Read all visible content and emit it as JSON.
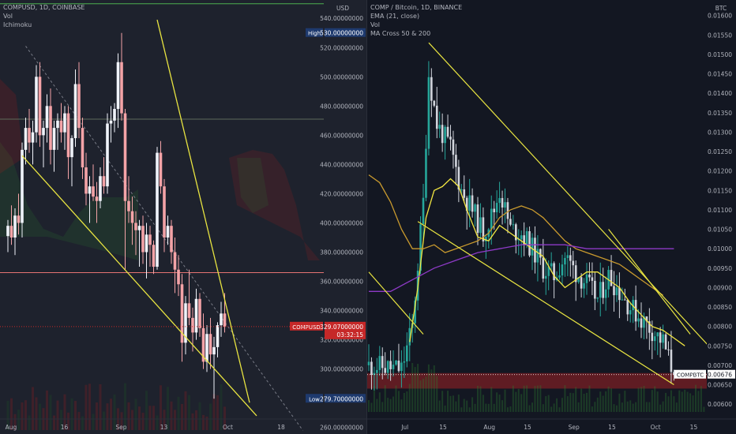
{
  "left": {
    "legend": [
      "COMPUSD, 1D, COINBASE",
      "Vol",
      "Ichimoku"
    ],
    "currency": "USD",
    "high_label": "High",
    "high_value": "530.00000000",
    "low_label": "Low",
    "low_value": "279.70000000",
    "symbol_tag": "COMPUSD",
    "price_tag": "329.07000000",
    "countdown": "03:32:15"
  },
  "right": {
    "legend": [
      "COMP / Bitcoin, 1D, BINANCE",
      "EMA (21, close)",
      "Vol",
      "MA Cross 50 & 200"
    ],
    "currency": "BTC",
    "symbol_tag": "COMPBTC",
    "price_tag": "0.00676"
  },
  "colors": {
    "up_left": "#f0f3fa",
    "down_left": "#f4a3a7",
    "up_right": "#26a69a",
    "down_right": "#d1d4dc",
    "trendline": "#e8e441",
    "ema": "#f2e641",
    "ma50": "#c99a2e",
    "ma200": "#8e3ac7",
    "support_zone": "#7a1f24",
    "price_tag_bg": "#c62828"
  },
  "chart_data": [
    {
      "type": "candlestick",
      "title": "COMPUSD, 1D, COINBASE",
      "ylim": [
        255,
        552
      ],
      "y_ticks": [
        260,
        280,
        300,
        320,
        340,
        360,
        380,
        400,
        420,
        440,
        460,
        480,
        500,
        520,
        540
      ],
      "y_tick_labels": [
        "260.00000000",
        "280.00000000",
        "300.00000000",
        "320.00000000",
        "340.00000000",
        "360.00000000",
        "380.00000000",
        "400.00000000",
        "420.00000000",
        "440.00000000",
        "460.00000000",
        "480.00000000",
        "500.00000000",
        "520.00000000",
        "540.00000000"
      ],
      "x_labels": [
        "Aug",
        "16",
        "Sep",
        "13",
        "Oct",
        "18"
      ],
      "x_label_days": [
        0,
        15,
        31,
        43,
        61,
        76
      ],
      "last_price": 329.07,
      "high": 530.0,
      "low": 279.7,
      "candles": [
        {
          "o": 391,
          "h": 402,
          "l": 380,
          "c": 398
        },
        {
          "o": 398,
          "h": 412,
          "l": 385,
          "c": 390
        },
        {
          "o": 390,
          "h": 410,
          "l": 378,
          "c": 405
        },
        {
          "o": 405,
          "h": 420,
          "l": 392,
          "c": 400
        },
        {
          "o": 400,
          "h": 455,
          "l": 390,
          "c": 450
        },
        {
          "o": 450,
          "h": 472,
          "l": 440,
          "c": 465
        },
        {
          "o": 465,
          "h": 478,
          "l": 448,
          "c": 455
        },
        {
          "o": 455,
          "h": 470,
          "l": 440,
          "c": 462
        },
        {
          "o": 462,
          "h": 508,
          "l": 455,
          "c": 500
        },
        {
          "o": 500,
          "h": 510,
          "l": 452,
          "c": 460
        },
        {
          "o": 460,
          "h": 470,
          "l": 438,
          "c": 465
        },
        {
          "o": 465,
          "h": 488,
          "l": 455,
          "c": 480
        },
        {
          "o": 480,
          "h": 492,
          "l": 440,
          "c": 450
        },
        {
          "o": 450,
          "h": 470,
          "l": 435,
          "c": 465
        },
        {
          "o": 465,
          "h": 475,
          "l": 450,
          "c": 470
        },
        {
          "o": 470,
          "h": 482,
          "l": 455,
          "c": 462
        },
        {
          "o": 462,
          "h": 480,
          "l": 450,
          "c": 475
        },
        {
          "o": 475,
          "h": 480,
          "l": 430,
          "c": 445
        },
        {
          "o": 445,
          "h": 460,
          "l": 425,
          "c": 458
        },
        {
          "o": 458,
          "h": 505,
          "l": 452,
          "c": 495
        },
        {
          "o": 495,
          "h": 510,
          "l": 458,
          "c": 465
        },
        {
          "o": 465,
          "h": 472,
          "l": 430,
          "c": 438
        },
        {
          "o": 438,
          "h": 448,
          "l": 412,
          "c": 420
        },
        {
          "o": 420,
          "h": 432,
          "l": 400,
          "c": 425
        },
        {
          "o": 425,
          "h": 440,
          "l": 415,
          "c": 418
        },
        {
          "o": 418,
          "h": 428,
          "l": 400,
          "c": 415
        },
        {
          "o": 415,
          "h": 438,
          "l": 410,
          "c": 432
        },
        {
          "o": 432,
          "h": 445,
          "l": 420,
          "c": 425
        },
        {
          "o": 425,
          "h": 475,
          "l": 420,
          "c": 468
        },
        {
          "o": 468,
          "h": 480,
          "l": 455,
          "c": 470
        },
        {
          "o": 470,
          "h": 482,
          "l": 462,
          "c": 478
        },
        {
          "o": 478,
          "h": 516,
          "l": 465,
          "c": 510
        },
        {
          "o": 510,
          "h": 530,
          "l": 470,
          "c": 475
        },
        {
          "o": 475,
          "h": 478,
          "l": 368,
          "c": 415
        },
        {
          "o": 415,
          "h": 432,
          "l": 400,
          "c": 408
        },
        {
          "o": 408,
          "h": 418,
          "l": 385,
          "c": 400
        },
        {
          "o": 400,
          "h": 408,
          "l": 378,
          "c": 395
        },
        {
          "o": 395,
          "h": 402,
          "l": 370,
          "c": 398
        },
        {
          "o": 398,
          "h": 405,
          "l": 372,
          "c": 380
        },
        {
          "o": 380,
          "h": 400,
          "l": 362,
          "c": 392
        },
        {
          "o": 392,
          "h": 398,
          "l": 370,
          "c": 385
        },
        {
          "o": 385,
          "h": 388,
          "l": 365,
          "c": 370
        },
        {
          "o": 370,
          "h": 452,
          "l": 368,
          "c": 448
        },
        {
          "o": 448,
          "h": 456,
          "l": 420,
          "c": 425
        },
        {
          "o": 425,
          "h": 430,
          "l": 380,
          "c": 390
        },
        {
          "o": 390,
          "h": 405,
          "l": 385,
          "c": 398
        },
        {
          "o": 398,
          "h": 402,
          "l": 372,
          "c": 380
        },
        {
          "o": 380,
          "h": 390,
          "l": 352,
          "c": 368
        },
        {
          "o": 368,
          "h": 378,
          "l": 350,
          "c": 358
        },
        {
          "o": 358,
          "h": 365,
          "l": 305,
          "c": 318
        },
        {
          "o": 318,
          "h": 350,
          "l": 310,
          "c": 345
        },
        {
          "o": 345,
          "h": 368,
          "l": 330,
          "c": 335
        },
        {
          "o": 335,
          "h": 342,
          "l": 312,
          "c": 325
        },
        {
          "o": 325,
          "h": 355,
          "l": 320,
          "c": 348
        },
        {
          "o": 348,
          "h": 352,
          "l": 322,
          "c": 328
        },
        {
          "o": 328,
          "h": 338,
          "l": 300,
          "c": 305
        },
        {
          "o": 305,
          "h": 330,
          "l": 298,
          "c": 324
        },
        {
          "o": 324,
          "h": 335,
          "l": 300,
          "c": 310
        },
        {
          "o": 310,
          "h": 322,
          "l": 279.7,
          "c": 315
        },
        {
          "o": 315,
          "h": 332,
          "l": 308,
          "c": 330
        },
        {
          "o": 330,
          "h": 346,
          "l": 322,
          "c": 338
        },
        {
          "o": 338,
          "h": 352,
          "l": 325,
          "c": 329.07
        }
      ],
      "trendlines": [
        {
          "name": "upper",
          "p1": [
            42,
            539
          ],
          "p2": [
            68,
            277
          ]
        },
        {
          "name": "lower",
          "p1": [
            4,
            446
          ],
          "p2": [
            70,
            268
          ]
        },
        {
          "name": "diagonal-dashed",
          "p1": [
            5,
            521
          ],
          "p2": [
            83,
            258
          ]
        }
      ],
      "levels": [
        {
          "name": "high-line",
          "y": 471
        },
        {
          "name": "support",
          "y": 366
        }
      ]
    },
    {
      "type": "candlestick",
      "title": "COMP / Bitcoin, 1D, BINANCE",
      "ylim": [
        0.0058,
        0.0164
      ],
      "y_ticks": [
        0.006,
        0.0065,
        0.007,
        0.0075,
        0.008,
        0.0085,
        0.009,
        0.0095,
        0.01,
        0.0105,
        0.011,
        0.0115,
        0.012,
        0.0125,
        0.013,
        0.0135,
        0.014,
        0.0145,
        0.015,
        0.0155,
        0.016
      ],
      "y_tick_labels": [
        "0.00600",
        "0.00650",
        "0.00700",
        "0.00750",
        "0.00800",
        "0.00850",
        "0.00900",
        "0.00950",
        "0.01000",
        "0.01050",
        "0.01100",
        "0.01150",
        "0.01200",
        "0.01250",
        "0.01300",
        "0.01350",
        "0.01400",
        "0.01450",
        "0.01500",
        "0.01550",
        "0.01600"
      ],
      "x_labels": [
        "Jul",
        "15",
        "Aug",
        "15",
        "Sep",
        "15",
        "Oct",
        "15"
      ],
      "x_label_days": [
        15,
        29,
        46,
        60,
        77,
        91,
        107,
        121
      ],
      "last_price": 0.00676,
      "support_zone": [
        0.0064,
        0.0068
      ],
      "trendlines": [
        {
          "name": "upper",
          "p1": [
            22,
            0.0153
          ],
          "p2": [
            130,
            0.0071
          ]
        },
        {
          "name": "middle",
          "p1": [
            18,
            0.0107
          ],
          "p2": [
            112,
            0.0065
          ]
        },
        {
          "name": "lower-left",
          "p1": [
            0,
            0.0094
          ],
          "p2": [
            20,
            0.0078
          ]
        },
        {
          "name": "top-right",
          "p1": [
            88,
            0.0105
          ],
          "p2": [
            118,
            0.0078
          ]
        }
      ],
      "series": [
        {
          "name": "EMA (21, close)",
          "days": [
            15,
            18,
            21,
            24,
            27,
            30,
            33,
            36,
            40,
            44,
            48,
            52,
            56,
            60,
            64,
            68,
            72,
            76,
            80,
            84,
            88,
            92,
            96,
            100,
            104,
            108,
            112,
            116
          ],
          "values": [
            0.0076,
            0.009,
            0.0108,
            0.0115,
            0.0116,
            0.0118,
            0.0116,
            0.011,
            0.0103,
            0.0102,
            0.0106,
            0.0104,
            0.0102,
            0.01,
            0.0098,
            0.0093,
            0.009,
            0.0092,
            0.0094,
            0.0094,
            0.0092,
            0.009,
            0.0086,
            0.0083,
            0.008,
            0.0079,
            0.0077,
            0.0075
          ]
        },
        {
          "name": "MA 50",
          "days": [
            0,
            4,
            8,
            12,
            16,
            20,
            24,
            28,
            32,
            36,
            40,
            44,
            48,
            52,
            56,
            60,
            64,
            68,
            72,
            76,
            80,
            84,
            88,
            92,
            96,
            100,
            104,
            108
          ],
          "values": [
            0.0119,
            0.0117,
            0.0112,
            0.0105,
            0.01,
            0.01,
            0.0101,
            0.0099,
            0.01,
            0.0101,
            0.0102,
            0.0104,
            0.0108,
            0.011,
            0.0111,
            0.011,
            0.0108,
            0.0105,
            0.0102,
            0.01,
            0.0099,
            0.0098,
            0.0097,
            0.0096,
            0.0094,
            0.0092,
            0.009,
            0.0088
          ]
        },
        {
          "name": "MA 200",
          "days": [
            0,
            8,
            16,
            24,
            32,
            40,
            48,
            56,
            64,
            72,
            80,
            88,
            96,
            104,
            112
          ],
          "values": [
            0.0089,
            0.0089,
            0.0092,
            0.0095,
            0.0097,
            0.0099,
            0.01,
            0.0101,
            0.0101,
            0.0101,
            0.01,
            0.01,
            0.01,
            0.01,
            0.01
          ]
        }
      ]
    }
  ]
}
